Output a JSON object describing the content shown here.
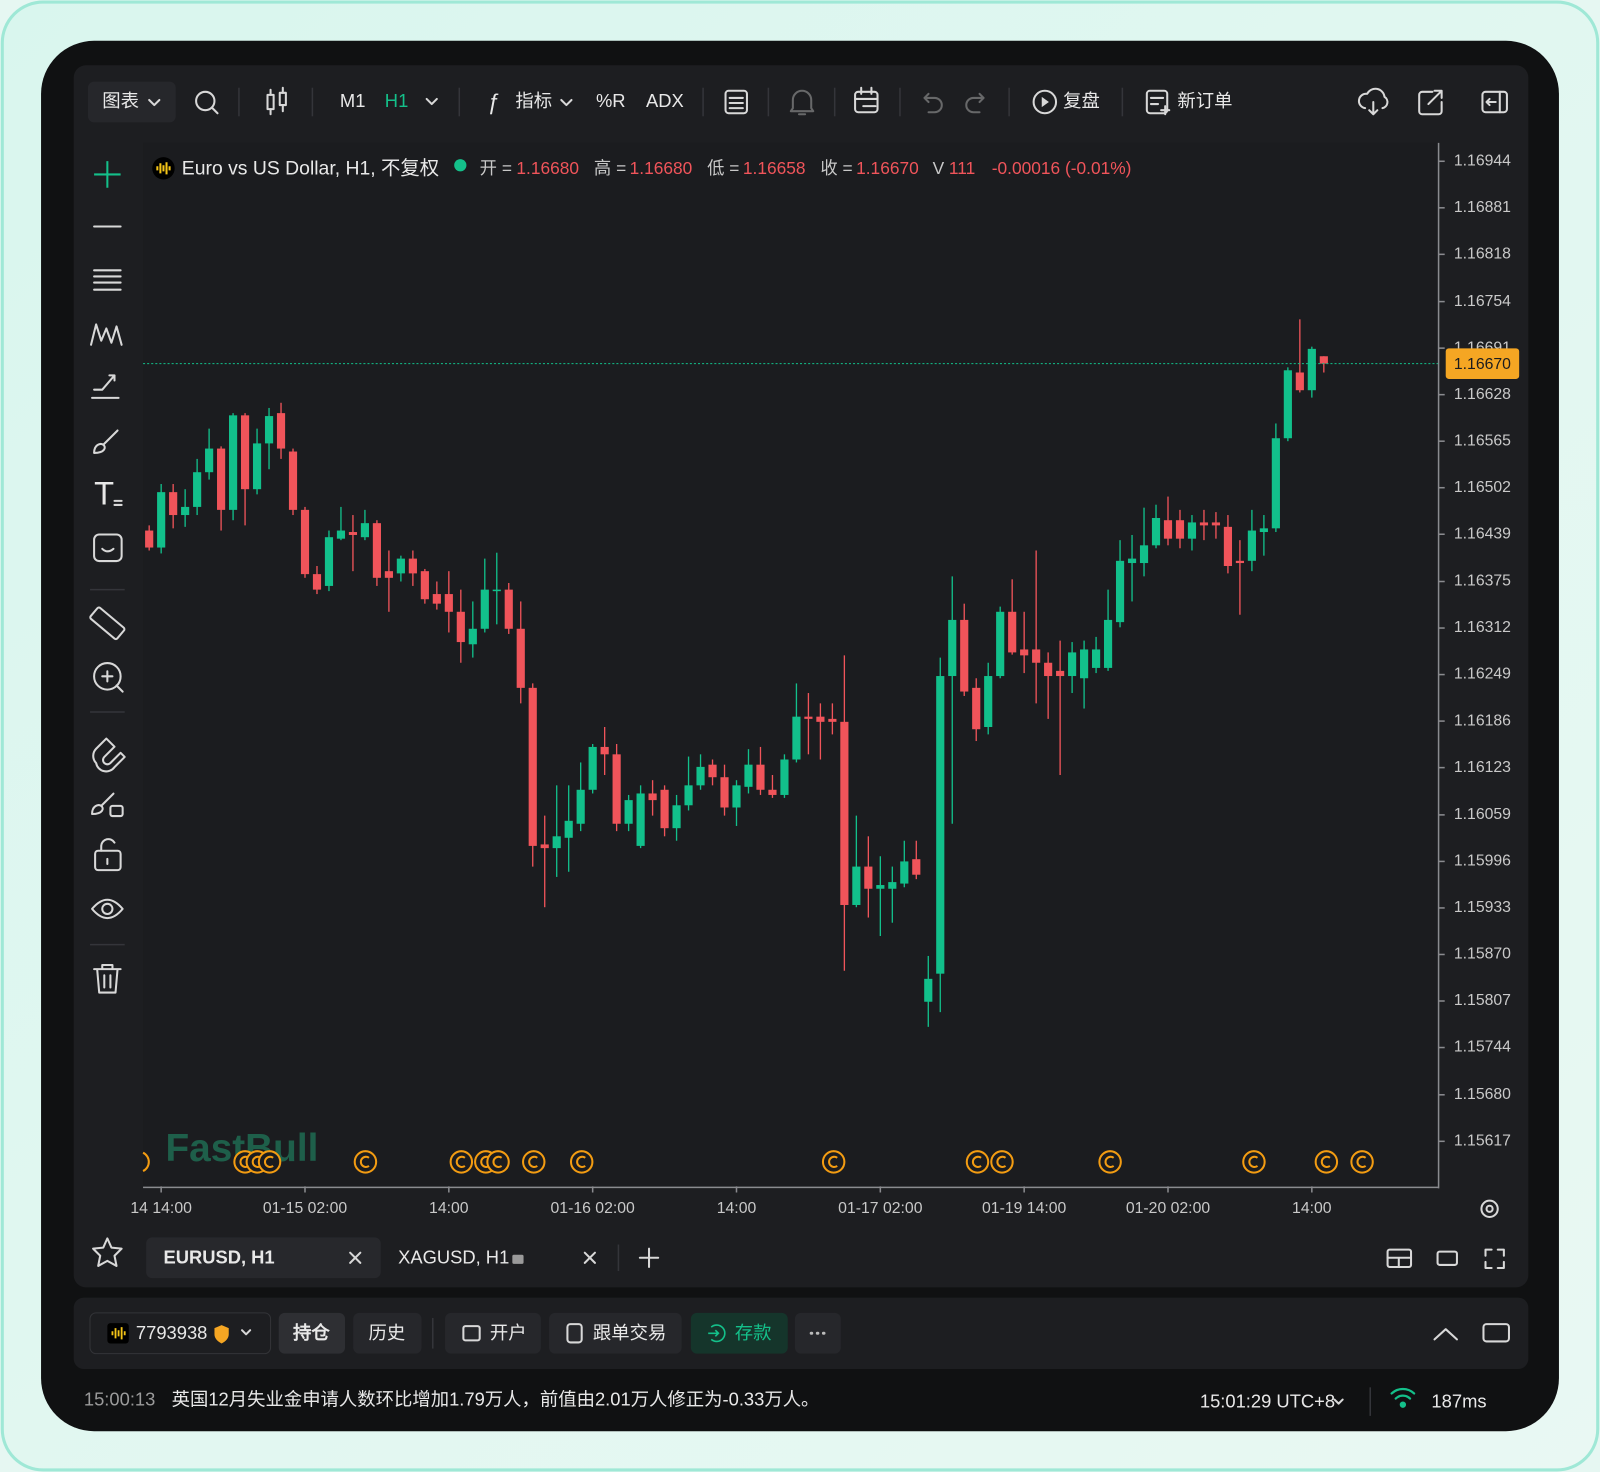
{
  "toolbar": {
    "chart_menu": "图表",
    "timeframes": [
      "M1",
      "H1"
    ],
    "indicators": "指标",
    "shortcuts": [
      "%R",
      "ADX"
    ],
    "replay": "复盘",
    "new_order": "新订单"
  },
  "legend": {
    "symbol": "Euro vs US Dollar, H1, 不复权",
    "open_label": "开 =",
    "open": "1.16680",
    "high_label": "高 =",
    "high": "1.16680",
    "low_label": "低 =",
    "low": "1.16658",
    "close_label": "收 =",
    "close": "1.16670",
    "volume_label": "V",
    "volume": "111",
    "change": "-0.00016 (-0.01%)"
  },
  "chart_data": {
    "type": "candlestick",
    "watermark": "FastBull",
    "up_color": "#12c08b",
    "down_color": "#f0545a",
    "grid": false,
    "categories": [
      null,
      "14 14:00",
      null,
      null,
      null,
      null,
      null,
      null,
      null,
      null,
      null,
      null,
      null,
      "01-15 02:00",
      null,
      null,
      null,
      null,
      null,
      null,
      null,
      null,
      null,
      null,
      null,
      "14:00",
      null,
      null,
      null,
      null,
      null,
      null,
      null,
      null,
      null,
      null,
      null,
      "01-16 02:00",
      null,
      null,
      null,
      null,
      null,
      null,
      null,
      null,
      null,
      null,
      null,
      "14:00",
      null,
      null,
      null,
      null,
      null,
      null,
      null,
      null,
      null,
      null,
      null,
      "01-17 02:00",
      null,
      null,
      null,
      null,
      null,
      null,
      null,
      null,
      null,
      null,
      null,
      "01-19 14:00",
      null,
      null,
      null,
      null,
      null,
      null,
      null,
      null,
      null,
      null,
      null,
      "01-20 02:00",
      null,
      null,
      null,
      null,
      null,
      null,
      null,
      null,
      null,
      null,
      null,
      "14:00",
      null
    ],
    "open": [
      1.16444,
      1.16421,
      1.16496,
      1.16465,
      1.16476,
      1.16523,
      1.16555,
      1.16472,
      1.166,
      1.165,
      1.16562,
      1.16603,
      1.16551,
      1.16472,
      1.16385,
      1.16369,
      1.16433,
      1.16442,
      1.16435,
      1.16454,
      1.16389,
      1.16386,
      1.16406,
      1.16389,
      1.16358,
      1.16358,
      1.16334,
      1.1629,
      1.16311,
      1.16362,
      1.16364,
      1.16311,
      1.16231,
      1.16019,
      1.16014,
      1.16028,
      1.16047,
      1.16093,
      1.16151,
      1.16141,
      1.16047,
      1.16017,
      1.16088,
      1.16093,
      1.16041,
      1.16072,
      1.16099,
      1.16127,
      1.1611,
      1.16069,
      1.16097,
      1.16127,
      1.16093,
      1.16086,
      1.16134,
      1.16192,
      1.16192,
      1.16189,
      1.16185,
      1.15937,
      1.15989,
      1.15959,
      1.15959,
      1.15966,
      1.15999,
      1.15806,
      1.15844,
      1.16247,
      1.16323,
      1.16231,
      1.16178,
      1.16247,
      1.16334,
      1.16283,
      1.16283,
      1.16265,
      1.16254,
      1.16247,
      1.16244,
      1.16258,
      1.16258,
      1.1632,
      1.164,
      1.164,
      1.16424,
      1.16458,
      1.16458,
      1.16433,
      1.16455,
      1.16455,
      1.16449,
      1.16403,
      1.16403,
      1.16442,
      1.16447,
      1.16569,
      1.16658,
      1.16634,
      1.1668
    ],
    "high": [
      1.16451,
      1.16507,
      1.16507,
      1.165,
      1.16541,
      1.16582,
      1.16558,
      1.16603,
      1.16603,
      1.16582,
      1.1661,
      1.16617,
      1.16555,
      1.16476,
      1.16396,
      1.16444,
      1.16476,
      1.16465,
      1.16472,
      1.16458,
      1.16417,
      1.1641,
      1.16417,
      1.16392,
      1.16375,
      1.16389,
      1.16364,
      1.16348,
      1.16406,
      1.16414,
      1.16373,
      1.16348,
      1.16237,
      1.16058,
      1.16099,
      1.16099,
      1.1613,
      1.16155,
      1.16178,
      1.16155,
      1.16086,
      1.16099,
      1.16106,
      1.16099,
      1.16086,
      1.16138,
      1.16141,
      1.16134,
      1.16127,
      1.16106,
      1.16148,
      1.16151,
      1.16113,
      1.16141,
      1.16237,
      1.16224,
      1.1621,
      1.1621,
      1.16275,
      1.16058,
      1.1603,
      1.16003,
      1.15989,
      1.16024,
      1.16024,
      1.15868,
      1.16272,
      1.16382,
      1.16345,
      1.16244,
      1.16265,
      1.16341,
      1.16378,
      1.16334,
      1.16417,
      1.16279,
      1.16295,
      1.16293,
      1.16295,
      1.163,
      1.16364,
      1.16431,
      1.16438,
      1.16475,
      1.16479,
      1.1649,
      1.16472,
      1.16465,
      1.16472,
      1.16469,
      1.16465,
      1.16431,
      1.16472,
      1.16465,
      1.16589,
      1.16665,
      1.1673,
      1.16693,
      1.1668
    ],
    "low": [
      1.16417,
      1.16413,
      1.16447,
      1.16449,
      1.16465,
      1.16513,
      1.16444,
      1.16458,
      1.16451,
      1.16493,
      1.16527,
      1.16541,
      1.16465,
      1.1638,
      1.16358,
      1.16362,
      1.16431,
      1.16389,
      1.16431,
      1.16369,
      1.16334,
      1.16375,
      1.16369,
      1.16345,
      1.16337,
      1.16306,
      1.16265,
      1.16272,
      1.16306,
      1.16317,
      1.16304,
      1.1621,
      1.15989,
      1.15934,
      1.15975,
      1.15982,
      1.16037,
      1.16088,
      1.16113,
      1.16037,
      1.16037,
      1.16014,
      1.16058,
      1.1603,
      1.16024,
      1.16065,
      1.16093,
      1.16099,
      1.16058,
      1.16044,
      1.16088,
      1.16086,
      1.16082,
      1.16082,
      1.1613,
      1.16141,
      1.16134,
      1.16168,
      1.15848,
      1.15934,
      1.1592,
      1.15895,
      1.15913,
      1.15961,
      1.15972,
      1.15772,
      1.15792,
      1.16047,
      1.1622,
      1.16159,
      1.16168,
      1.16244,
      1.16276,
      1.16251,
      1.1621,
      1.16189,
      1.16113,
      1.16224,
      1.16203,
      1.16251,
      1.16254,
      1.16313,
      1.16348,
      1.16382,
      1.1642,
      1.16424,
      1.1642,
      1.16417,
      1.16431,
      1.16433,
      1.16386,
      1.1633,
      1.16389,
      1.1641,
      1.16442,
      1.16565,
      1.16631,
      1.16624,
      1.16658
    ],
    "close": [
      1.16421,
      1.16496,
      1.16465,
      1.16476,
      1.16523,
      1.16555,
      1.16472,
      1.166,
      1.165,
      1.16562,
      1.16599,
      1.16555,
      1.16472,
      1.16385,
      1.16364,
      1.16435,
      1.16444,
      1.16438,
      1.16454,
      1.1638,
      1.1638,
      1.16406,
      1.16386,
      1.16351,
      1.16345,
      1.16334,
      1.16293,
      1.16311,
      1.16364,
      1.16364,
      1.16311,
      1.16231,
      1.16017,
      1.16014,
      1.1603,
      1.16051,
      1.16093,
      1.16151,
      1.16141,
      1.16047,
      1.16079,
      1.16088,
      1.16079,
      1.16041,
      1.16072,
      1.16099,
      1.16124,
      1.1611,
      1.16069,
      1.16099,
      1.16127,
      1.16093,
      1.16086,
      1.16134,
      1.16192,
      1.16189,
      1.16185,
      1.16185,
      1.15937,
      1.15989,
      1.15959,
      1.15964,
      1.15968,
      1.15996,
      1.15978,
      1.15837,
      1.16247,
      1.16323,
      1.16226,
      1.16175,
      1.16247,
      1.16334,
      1.16279,
      1.16275,
      1.16265,
      1.16247,
      1.16247,
      1.16279,
      1.16283,
      1.16283,
      1.16323,
      1.16403,
      1.16406,
      1.16424,
      1.16461,
      1.16433,
      1.16433,
      1.16455,
      1.16451,
      1.16451,
      1.16396,
      1.164,
      1.16444,
      1.16447,
      1.16569,
      1.16661,
      1.16634,
      1.1669,
      1.1667
    ],
    "ylim": [
      1.15556,
      1.16969
    ],
    "yticks": [
      1.16944,
      1.16881,
      1.16818,
      1.16754,
      1.16691,
      1.16628,
      1.16565,
      1.16502,
      1.16439,
      1.16375,
      1.16312,
      1.16249,
      1.16186,
      1.16123,
      1.16059,
      1.15996,
      1.15933,
      {
        "value": 1.1587,
        "label": "1.15870"
      },
      1.15807,
      1.15744,
      {
        "value": 1.1568,
        "label": "1.15680"
      },
      1.15617
    ],
    "last_price": {
      "value": 1.1667,
      "label": "1.16670"
    }
  },
  "tabs": [
    "EURUSD, H1",
    "XAGUSD, H1"
  ],
  "account": {
    "id": "7793938",
    "positions": "持仓",
    "history": "历史",
    "open_account": "开户",
    "copy_trading": "跟单交易",
    "deposit": "存款"
  },
  "status": {
    "time": "15:00:13",
    "news": "英国12月失业金申请人数环比增加1.79万人，前值由2.01万人修正为-0.33万人。",
    "clock": "15:01:29 UTC+8",
    "latency": "187ms"
  }
}
